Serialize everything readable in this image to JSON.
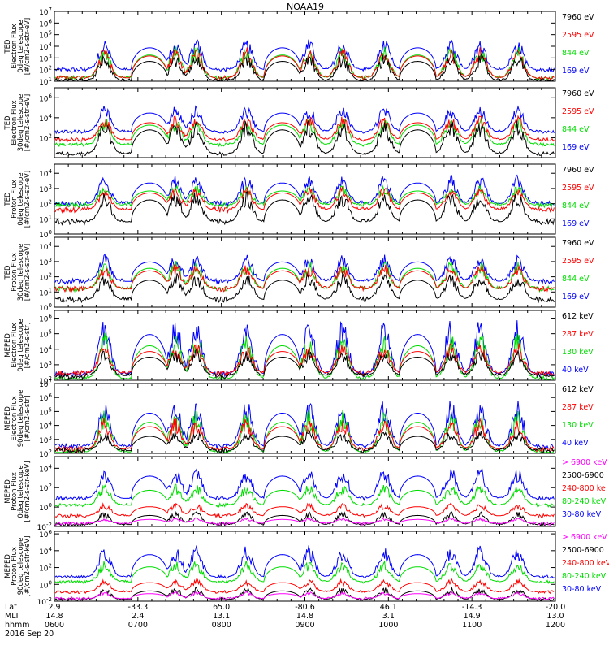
{
  "title": "NOAA19",
  "colors": {
    "blue": "#0000ff",
    "red": "#ff0000",
    "green": "#00dd00",
    "black": "#000000",
    "magenta": "#ff00ff"
  },
  "chart_data": {
    "type": "line",
    "title": "NOAA19",
    "date_label": "2016 Sep 20",
    "xaxis": {
      "row_labels": [
        "Lat",
        "MLT",
        "hhmm"
      ],
      "ticks": [
        {
          "time": "0600",
          "lat": "2.9",
          "mlt": "14.8"
        },
        {
          "time": "0700",
          "lat": "-33.3",
          "mlt": "2.4"
        },
        {
          "time": "0800",
          "lat": "65.0",
          "mlt": "13.1"
        },
        {
          "time": "0900",
          "lat": "-80.6",
          "mlt": "14.8"
        },
        {
          "time": "1000",
          "lat": "46.1",
          "mlt": "3.1"
        },
        {
          "time": "1100",
          "lat": "-14.3",
          "mlt": "14.9"
        },
        {
          "time": "1200",
          "lat": "-20.0",
          "mlt": "13.0"
        }
      ]
    },
    "orbit_passes": [
      {
        "center_hour": 6.6,
        "type": "pole"
      },
      {
        "center_hour": 7.14,
        "type": "saa"
      },
      {
        "center_hour": 7.45,
        "type": "pole"
      },
      {
        "center_hour": 7.7,
        "type": "pole"
      },
      {
        "center_hour": 8.3,
        "type": "pole"
      },
      {
        "center_hour": 8.73,
        "type": "saa"
      },
      {
        "center_hour": 9.05,
        "type": "pole"
      },
      {
        "center_hour": 9.45,
        "type": "pole"
      },
      {
        "center_hour": 9.95,
        "type": "pole"
      },
      {
        "center_hour": 10.35,
        "type": "saa"
      },
      {
        "center_hour": 10.75,
        "type": "pole"
      },
      {
        "center_hour": 11.1,
        "type": "pole"
      },
      {
        "center_hour": 11.55,
        "type": "pole"
      }
    ],
    "panels": [
      {
        "ylabel": [
          "TED",
          "Electron Flux",
          "0deg telescope",
          "[#/cm2-s-str-eV]"
        ],
        "yticks": [
          {
            "b": "10",
            "e": "1"
          },
          {
            "b": "10",
            "e": "2"
          },
          {
            "b": "10",
            "e": "3"
          },
          {
            "b": "10",
            "e": "4"
          },
          {
            "b": "10",
            "e": "5"
          },
          {
            "b": "10",
            "e": "6"
          },
          {
            "b": "10",
            "e": "7"
          }
        ],
        "ylim_log10": [
          1,
          7
        ],
        "background_log10": {
          "blue": 2.0,
          "red": 1.3,
          "green": 1.3,
          "black": 1.05
        },
        "series": [
          {
            "name": "7960 eV",
            "color": "black",
            "peak_log10": 3.0
          },
          {
            "name": "2595 eV",
            "color": "red",
            "peak_log10": 3.5
          },
          {
            "name": "844 eV",
            "color": "green",
            "peak_log10": 3.6
          },
          {
            "name": "169 eV",
            "color": "blue",
            "peak_log10": 4.2
          }
        ]
      },
      {
        "ylabel": [
          "TED",
          "Electron Flux",
          "30deg telescope",
          "[#/cm2-s-str-eV]"
        ],
        "yticks": [
          {
            "b": "10",
            "e": "2"
          },
          {
            "b": "10",
            "e": "4"
          },
          {
            "b": "10",
            "e": "6"
          }
        ],
        "ylim_log10": [
          0,
          7
        ],
        "background_log10": {
          "blue": 2.6,
          "red": 1.8,
          "green": 1.3,
          "black": 0.4
        },
        "series": [
          {
            "name": "7960 eV",
            "color": "black",
            "peak_log10": 3.2
          },
          {
            "name": "2595 eV",
            "color": "red",
            "peak_log10": 3.8
          },
          {
            "name": "844 eV",
            "color": "green",
            "peak_log10": 3.6
          },
          {
            "name": "169 eV",
            "color": "blue",
            "peak_log10": 4.8
          }
        ]
      },
      {
        "ylabel": [
          "TED",
          "Proton Flux",
          "0deg telescope",
          "[#/cm2-s-str-eV]"
        ],
        "yticks": [
          {
            "b": "10",
            "e": "0"
          },
          {
            "b": "10",
            "e": "1"
          },
          {
            "b": "10",
            "e": "2"
          },
          {
            "b": "10",
            "e": "3"
          },
          {
            "b": "10",
            "e": "4"
          }
        ],
        "ylim_log10": [
          0,
          4.6
        ],
        "background_log10": {
          "blue": 2.0,
          "red": 1.6,
          "green": 1.9,
          "black": 0.8
        },
        "series": [
          {
            "name": "7960 eV",
            "color": "black",
            "peak_log10": 2.5
          },
          {
            "name": "2595 eV",
            "color": "red",
            "peak_log10": 2.9
          },
          {
            "name": "844 eV",
            "color": "green",
            "peak_log10": 3.0
          },
          {
            "name": "169 eV",
            "color": "blue",
            "peak_log10": 3.6
          }
        ]
      },
      {
        "ylabel": [
          "TED",
          "Proton Flux",
          "30deg telescope",
          "[#/cm2-s-str-eV]"
        ],
        "yticks": [
          {
            "b": "10",
            "e": "0"
          },
          {
            "b": "10",
            "e": "1"
          },
          {
            "b": "10",
            "e": "2"
          },
          {
            "b": "10",
            "e": "3"
          },
          {
            "b": "10",
            "e": "4"
          }
        ],
        "ylim_log10": [
          0,
          4.6
        ],
        "background_log10": {
          "blue": 1.7,
          "red": 1.2,
          "green": 1.2,
          "black": 0.5
        },
        "series": [
          {
            "name": "7960 eV",
            "color": "black",
            "peak_log10": 2.0
          },
          {
            "name": "2595 eV",
            "color": "red",
            "peak_log10": 2.6
          },
          {
            "name": "844 eV",
            "color": "green",
            "peak_log10": 2.8
          },
          {
            "name": "169 eV",
            "color": "blue",
            "peak_log10": 3.2
          }
        ]
      },
      {
        "ylabel": [
          "MEPED",
          "Electron Flux",
          "0deg telescope",
          "[#/cm2-s-str]"
        ],
        "yticks": [
          {
            "b": "10",
            "e": "2"
          },
          {
            "b": "10",
            "e": "3"
          },
          {
            "b": "10",
            "e": "4"
          },
          {
            "b": "10",
            "e": "5"
          },
          {
            "b": "10",
            "e": "6"
          }
        ],
        "ylim_log10": [
          2,
          6.5
        ],
        "background_log10": {
          "blue": 2.4,
          "red": 2.45,
          "green": 2.1,
          "black": 2.3
        },
        "series": [
          {
            "name": "612 keV",
            "color": "black",
            "peak_log10": 3.7
          },
          {
            "name": "287 keV",
            "color": "red",
            "peak_log10": 4.1
          },
          {
            "name": "130 keV",
            "color": "green",
            "peak_log10": 4.6
          },
          {
            "name": "40 keV",
            "color": "blue",
            "peak_log10": 5.4
          }
        ]
      },
      {
        "ylabel": [
          "MEPED",
          "Electron Flux",
          "90deg telescope",
          "[#/cm2-s-str]"
        ],
        "yticks": [
          {
            "b": "10",
            "e": "2"
          },
          {
            "b": "10",
            "e": "3"
          },
          {
            "b": "10",
            "e": "4"
          },
          {
            "b": "10",
            "e": "5"
          },
          {
            "b": "10",
            "e": "6"
          },
          {
            "b": "10",
            "e": "7"
          }
        ],
        "ylim_log10": [
          2,
          7
        ],
        "background_log10": {
          "blue": 2.5,
          "red": 2.3,
          "green": 2.1,
          "black": 2.2
        },
        "series": [
          {
            "name": "612 keV",
            "color": "black",
            "peak_log10": 3.4
          },
          {
            "name": "287 keV",
            "color": "red",
            "peak_log10": 4.2
          },
          {
            "name": "130 keV",
            "color": "green",
            "peak_log10": 4.6
          },
          {
            "name": "40 keV",
            "color": "blue",
            "peak_log10": 5.3
          }
        ]
      },
      {
        "ylabel": [
          "MEPED",
          "Proton Flux",
          "0deg telescope",
          "[#/cm2-s-str-keV]"
        ],
        "yticks": [
          {
            "b": "10",
            "e": "-2"
          },
          {
            "b": "10",
            "e": "0"
          },
          {
            "b": "10",
            "e": "2"
          },
          {
            "b": "10",
            "e": "4"
          }
        ],
        "ylim_log10": [
          -2,
          5.2
        ],
        "background_log10": {
          "blue": 0.9,
          "red": -0.9,
          "green": 0.2,
          "black": -1.8
        },
        "series": [
          {
            "name": "> 6900 keV",
            "color": "magenta",
            "peak_log10": -1.2
          },
          {
            "name": "2500-6900",
            "color": "black",
            "peak_log10": -0.7
          },
          {
            "name": "240-800 ke",
            "color": "red",
            "peak_log10": 0.2
          },
          {
            "name": "80-240 keV",
            "color": "green",
            "peak_log10": 2.0
          },
          {
            "name": "30-80 keV",
            "color": "blue",
            "peak_log10": 3.6
          }
        ]
      },
      {
        "ylabel": [
          "MEPED",
          "Proton Flux",
          "90deg telescope",
          "[#/cm2-s-str-keV]"
        ],
        "yticks": [
          {
            "b": "10",
            "e": "-2"
          },
          {
            "b": "10",
            "e": "0"
          },
          {
            "b": "10",
            "e": "2"
          },
          {
            "b": "10",
            "e": "4"
          },
          {
            "b": "10",
            "e": "6"
          }
        ],
        "ylim_log10": [
          -2,
          6.3
        ],
        "background_log10": {
          "blue": 0.9,
          "red": -0.9,
          "green": 0.3,
          "black": -1.8
        },
        "series": [
          {
            "name": "> 6900 keV",
            "color": "magenta",
            "peak_log10": -1.0
          },
          {
            "name": "2500-6900",
            "color": "black",
            "peak_log10": -0.6
          },
          {
            "name": "240-800 keV",
            "color": "red",
            "peak_log10": 0.4
          },
          {
            "name": "80-240 keV",
            "color": "green",
            "peak_log10": 2.4
          },
          {
            "name": "30-80 keV",
            "color": "blue",
            "peak_log10": 4.0
          }
        ]
      }
    ]
  }
}
